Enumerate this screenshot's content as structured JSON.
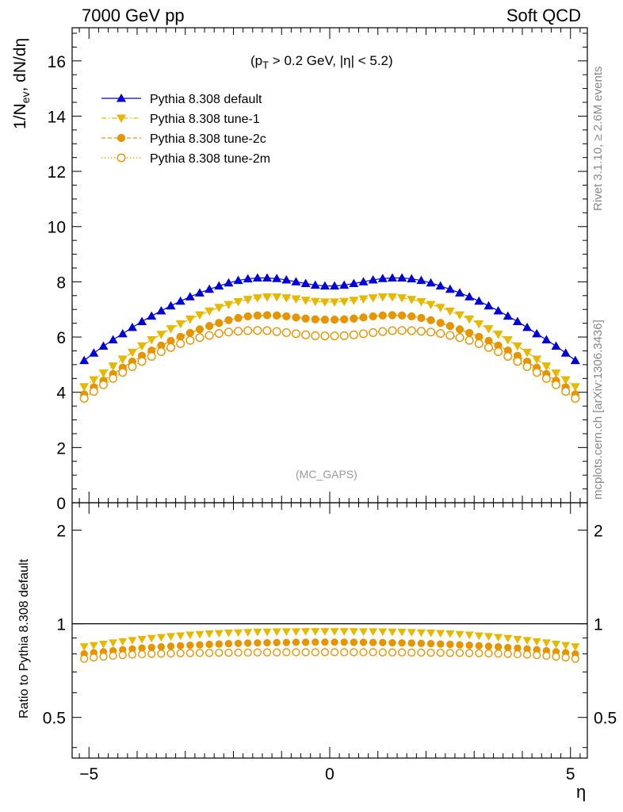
{
  "header": {
    "left": "7000 GeV pp",
    "right": "Soft QCD"
  },
  "side_labels": {
    "rivet": "Rivet 3.1.10, ≥ 2.6M events",
    "mcplots": "mcplots.cern.ch [arXiv:1306.3436]"
  },
  "main_panel": {
    "ylabel_main": "1/N",
    "ylabel_sub": "ev",
    "ylabel_rest": ", dN/dη",
    "cut_label_parts": [
      "(p",
      "T",
      " > 0.2 GeV, |η| < 5.2)"
    ],
    "watermark": "(MC_GAPS)"
  },
  "ratio_panel": {
    "ylabel": "Ratio to Pythia 8.308 default"
  },
  "xaxis": {
    "label": "η"
  },
  "chart_data": [
    {
      "type": "scatter",
      "panel": "main",
      "xlim": [
        -5.35,
        5.35
      ],
      "ylim": [
        0,
        17.2
      ],
      "yticks": [
        0,
        2,
        4,
        6,
        8,
        10,
        12,
        14,
        16
      ],
      "ytick_labels": [
        "0",
        "2",
        "4",
        "6",
        "8",
        "10",
        "12",
        "14",
        "16"
      ],
      "xticks": [
        -5,
        0,
        5
      ],
      "xtick_labels": [
        "−5",
        "0",
        "5"
      ],
      "legend_position": "top-left",
      "x": [
        -5.1,
        -4.9,
        -4.7,
        -4.5,
        -4.3,
        -4.1,
        -3.9,
        -3.7,
        -3.5,
        -3.3,
        -3.1,
        -2.9,
        -2.7,
        -2.5,
        -2.3,
        -2.1,
        -1.9,
        -1.7,
        -1.5,
        -1.3,
        -1.1,
        -0.9,
        -0.7,
        -0.5,
        -0.3,
        -0.1,
        0.1,
        0.3,
        0.5,
        0.7,
        0.9,
        1.1,
        1.3,
        1.5,
        1.7,
        1.9,
        2.1,
        2.3,
        2.5,
        2.7,
        2.9,
        3.1,
        3.3,
        3.5,
        3.7,
        3.9,
        4.1,
        4.3,
        4.5,
        4.7,
        4.9,
        5.1
      ],
      "series": [
        {
          "name": "Pythia 8.308 default",
          "color": "#0000dd",
          "marker": "triangle-up",
          "line": "solid",
          "values": [
            5.15,
            5.42,
            5.67,
            5.9,
            6.12,
            6.35,
            6.56,
            6.76,
            6.95,
            7.13,
            7.3,
            7.46,
            7.6,
            7.73,
            7.85,
            7.96,
            8.05,
            8.11,
            8.14,
            8.14,
            8.12,
            8.07,
            8.0,
            7.94,
            7.88,
            7.85,
            7.85,
            7.88,
            7.94,
            8.0,
            8.07,
            8.12,
            8.14,
            8.14,
            8.11,
            8.05,
            7.96,
            7.85,
            7.73,
            7.6,
            7.46,
            7.3,
            7.13,
            6.95,
            6.76,
            6.56,
            6.35,
            6.12,
            5.9,
            5.67,
            5.42,
            5.15
          ]
        },
        {
          "name": "Pythia 8.308 tune-1",
          "color": "#e6b800",
          "marker": "triangle-down",
          "line": "dashdot",
          "values": [
            4.2,
            4.45,
            4.7,
            4.95,
            5.2,
            5.45,
            5.68,
            5.9,
            6.1,
            6.3,
            6.48,
            6.65,
            6.8,
            6.94,
            7.07,
            7.18,
            7.28,
            7.36,
            7.42,
            7.45,
            7.45,
            7.42,
            7.38,
            7.33,
            7.29,
            7.27,
            7.27,
            7.29,
            7.33,
            7.38,
            7.42,
            7.45,
            7.45,
            7.42,
            7.36,
            7.28,
            7.18,
            7.07,
            6.94,
            6.8,
            6.65,
            6.48,
            6.3,
            6.1,
            5.9,
            5.68,
            5.45,
            5.2,
            4.95,
            4.7,
            4.45,
            4.2
          ]
        },
        {
          "name": "Pythia 8.308 tune-2c",
          "color": "#e69500",
          "marker": "circle",
          "line": "dashed",
          "values": [
            3.92,
            4.18,
            4.42,
            4.66,
            4.89,
            5.11,
            5.32,
            5.51,
            5.69,
            5.86,
            6.01,
            6.15,
            6.28,
            6.4,
            6.51,
            6.61,
            6.69,
            6.75,
            6.78,
            6.79,
            6.78,
            6.75,
            6.71,
            6.67,
            6.64,
            6.63,
            6.63,
            6.64,
            6.67,
            6.71,
            6.75,
            6.78,
            6.79,
            6.78,
            6.75,
            6.69,
            6.61,
            6.51,
            6.4,
            6.28,
            6.15,
            6.01,
            5.86,
            5.69,
            5.51,
            5.32,
            5.11,
            4.89,
            4.66,
            4.42,
            4.18,
            3.92
          ]
        },
        {
          "name": "Pythia 8.308 tune-2m",
          "color": "#e69500",
          "marker": "open-circle",
          "line": "dotted",
          "values": [
            3.78,
            4.03,
            4.27,
            4.5,
            4.72,
            4.93,
            5.12,
            5.3,
            5.47,
            5.62,
            5.76,
            5.88,
            5.98,
            6.06,
            6.13,
            6.18,
            6.21,
            6.23,
            6.24,
            6.23,
            6.2,
            6.16,
            6.12,
            6.08,
            6.05,
            6.04,
            6.04,
            6.05,
            6.08,
            6.12,
            6.16,
            6.2,
            6.23,
            6.24,
            6.23,
            6.21,
            6.18,
            6.13,
            6.06,
            5.98,
            5.88,
            5.76,
            5.62,
            5.47,
            5.3,
            5.12,
            4.93,
            4.72,
            4.5,
            4.27,
            4.03,
            3.78
          ]
        }
      ]
    },
    {
      "type": "scatter",
      "panel": "ratio",
      "xlim": [
        -5.35,
        5.35
      ],
      "ylim": [
        0.37,
        2.45
      ],
      "yscale": "log",
      "yticks": [
        0.5,
        1,
        2
      ],
      "ytick_labels": [
        "0.5",
        "1",
        "2"
      ],
      "xticks": [
        -5,
        0,
        5
      ],
      "xtick_labels": [
        "−5",
        "0",
        "5"
      ],
      "reference_line": 1,
      "x": [
        -5.1,
        -4.9,
        -4.7,
        -4.5,
        -4.3,
        -4.1,
        -3.9,
        -3.7,
        -3.5,
        -3.3,
        -3.1,
        -2.9,
        -2.7,
        -2.5,
        -2.3,
        -2.1,
        -1.9,
        -1.7,
        -1.5,
        -1.3,
        -1.1,
        -0.9,
        -0.7,
        -0.5,
        -0.3,
        -0.1,
        0.1,
        0.3,
        0.5,
        0.7,
        0.9,
        1.1,
        1.3,
        1.5,
        1.7,
        1.9,
        2.1,
        2.3,
        2.5,
        2.7,
        2.9,
        3.1,
        3.3,
        3.5,
        3.7,
        3.9,
        4.1,
        4.3,
        4.5,
        4.7,
        4.9,
        5.1
      ],
      "series": [
        {
          "name": "Pythia 8.308 tune-1",
          "color": "#e6b800",
          "marker": "triangle-down",
          "values": [
            0.845,
            0.853,
            0.861,
            0.869,
            0.877,
            0.885,
            0.892,
            0.899,
            0.905,
            0.911,
            0.916,
            0.921,
            0.925,
            0.929,
            0.932,
            0.935,
            0.937,
            0.939,
            0.941,
            0.942,
            0.943,
            0.944,
            0.944,
            0.945,
            0.945,
            0.945,
            0.945,
            0.945,
            0.945,
            0.944,
            0.944,
            0.943,
            0.942,
            0.941,
            0.939,
            0.937,
            0.935,
            0.932,
            0.929,
            0.925,
            0.921,
            0.916,
            0.911,
            0.905,
            0.899,
            0.892,
            0.885,
            0.877,
            0.869,
            0.861,
            0.853,
            0.845
          ]
        },
        {
          "name": "Pythia 8.308 tune-2c",
          "color": "#e69500",
          "marker": "circle",
          "values": [
            0.8,
            0.807,
            0.813,
            0.819,
            0.825,
            0.83,
            0.835,
            0.839,
            0.843,
            0.847,
            0.85,
            0.853,
            0.856,
            0.859,
            0.861,
            0.863,
            0.865,
            0.867,
            0.868,
            0.869,
            0.87,
            0.871,
            0.872,
            0.872,
            0.873,
            0.873,
            0.873,
            0.873,
            0.872,
            0.872,
            0.871,
            0.87,
            0.869,
            0.868,
            0.867,
            0.865,
            0.863,
            0.861,
            0.859,
            0.856,
            0.853,
            0.85,
            0.847,
            0.843,
            0.839,
            0.835,
            0.83,
            0.825,
            0.819,
            0.813,
            0.807,
            0.8
          ]
        },
        {
          "name": "Pythia 8.308 tune-2m",
          "color": "#e69500",
          "marker": "open-circle",
          "values": [
            0.772,
            0.779,
            0.784,
            0.789,
            0.793,
            0.796,
            0.798,
            0.8,
            0.802,
            0.803,
            0.804,
            0.805,
            0.806,
            0.806,
            0.807,
            0.807,
            0.808,
            0.808,
            0.809,
            0.809,
            0.809,
            0.81,
            0.81,
            0.81,
            0.81,
            0.81,
            0.81,
            0.81,
            0.81,
            0.81,
            0.81,
            0.809,
            0.809,
            0.809,
            0.808,
            0.808,
            0.807,
            0.807,
            0.806,
            0.806,
            0.805,
            0.804,
            0.803,
            0.802,
            0.8,
            0.798,
            0.796,
            0.793,
            0.789,
            0.784,
            0.779,
            0.772
          ]
        }
      ]
    }
  ]
}
